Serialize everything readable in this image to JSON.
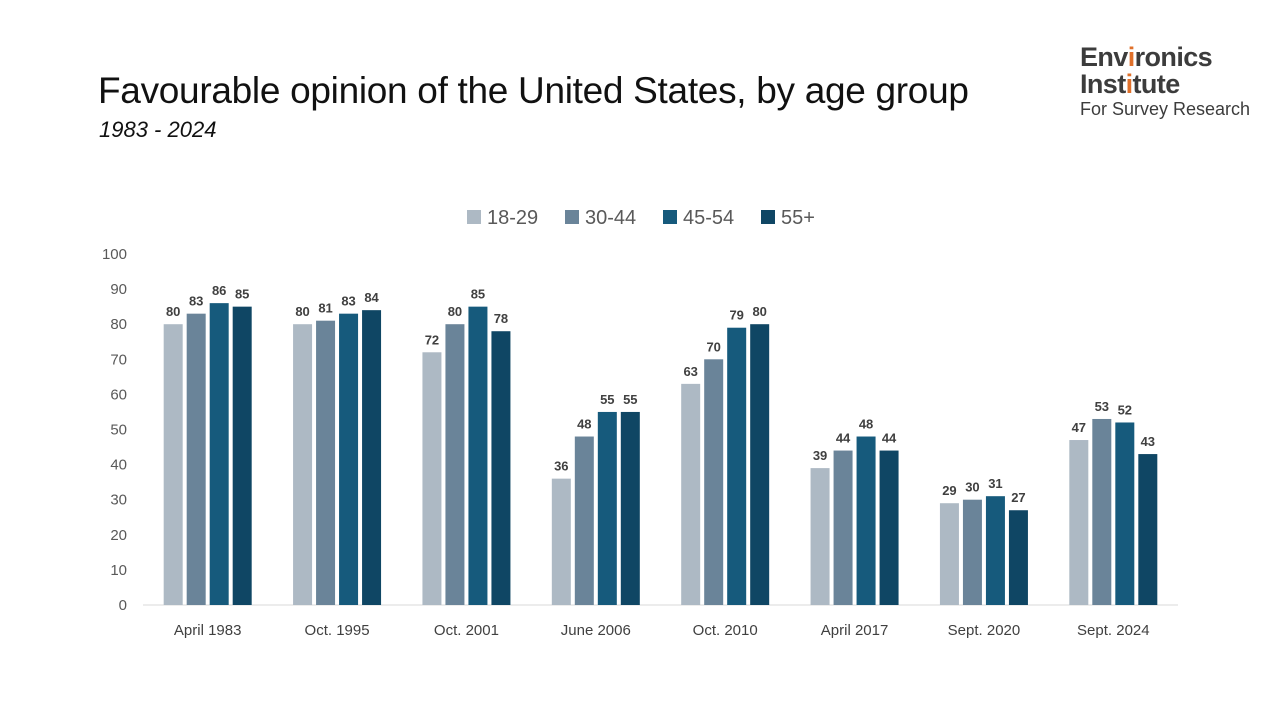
{
  "header": {
    "title": "Favourable opinion of the United States, by age group",
    "subtitle": "1983 - 2024"
  },
  "logo": {
    "line1_pre": "Env",
    "line1_accent": "i",
    "line1_post": "ronics",
    "line2_pre": "Inst",
    "line2_accent": "i",
    "line2_post": "tute",
    "line3": "For Survey Research",
    "accent_color": "#e0702a"
  },
  "chart_data": {
    "type": "bar",
    "title": "Favourable opinion of the United States, by age group",
    "subtitle": "1983 - 2024",
    "xlabel": "",
    "ylabel": "",
    "ylim": [
      0,
      100
    ],
    "yticks": [
      0,
      10,
      20,
      30,
      40,
      50,
      60,
      70,
      80,
      90,
      100
    ],
    "grid": false,
    "legend_position": "top",
    "categories": [
      "April 1983",
      "Oct. 1995",
      "Oct. 2001",
      "June 2006",
      "Oct. 2010",
      "April 2017",
      "Sept. 2020",
      "Sept. 2024"
    ],
    "series": [
      {
        "name": "18-29",
        "color": "#adb9c4",
        "values": [
          80,
          80,
          72,
          36,
          63,
          39,
          29,
          47
        ]
      },
      {
        "name": "30-44",
        "color": "#6a8499",
        "values": [
          83,
          81,
          80,
          48,
          70,
          44,
          30,
          53
        ]
      },
      {
        "name": "45-54",
        "color": "#165a7c",
        "values": [
          86,
          83,
          85,
          55,
          79,
          48,
          31,
          52
        ]
      },
      {
        "name": "55+",
        "color": "#0f4664",
        "values": [
          85,
          84,
          78,
          55,
          80,
          44,
          27,
          43
        ]
      }
    ],
    "data_labels": true
  }
}
